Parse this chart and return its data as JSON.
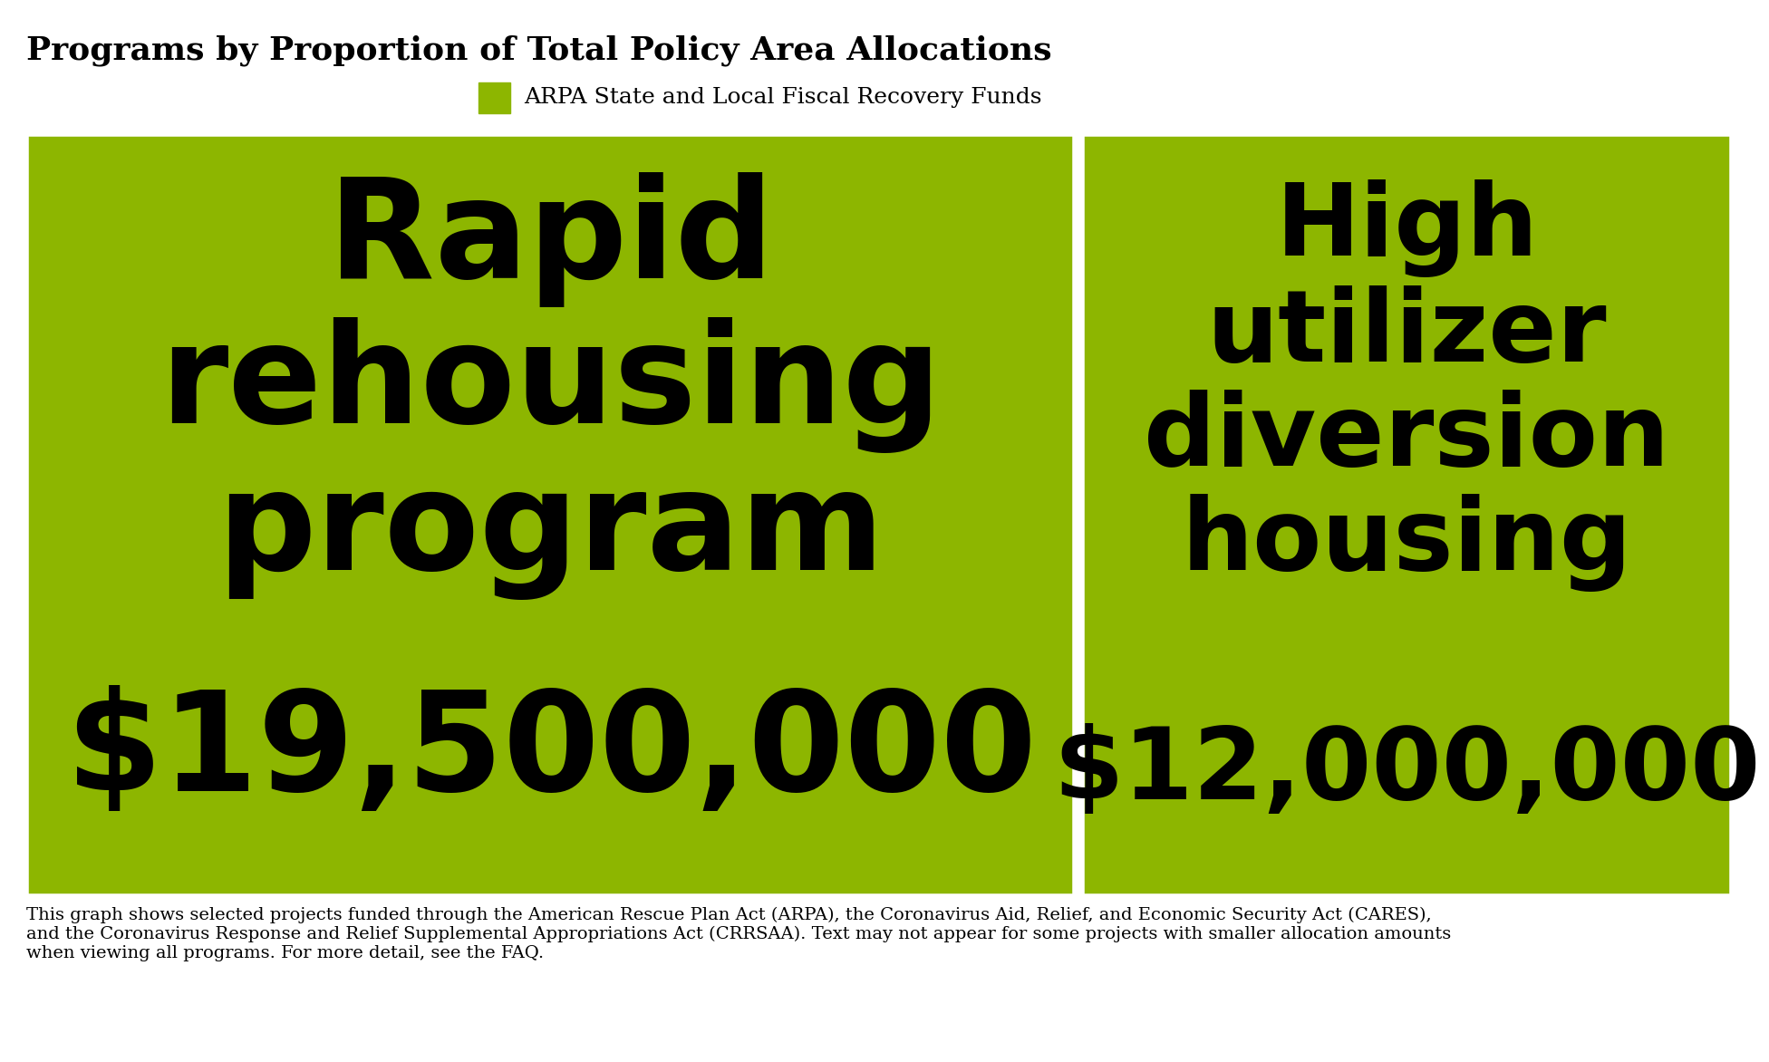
{
  "title": "Programs by Proportion of Total Policy Area Allocations",
  "legend_label": "ARPA State and Local Fiscal Recovery Funds",
  "legend_color": "#8db600",
  "treemap_color": "#8db600",
  "border_color": "#ffffff",
  "programs": [
    {
      "name": "Rapid\nrehousing\nprogram",
      "amount": 19500000,
      "amount_str": "$19,500,000"
    },
    {
      "name": "High\nutilizer\ndiversion\nhousing",
      "amount": 12000000,
      "amount_str": "$12,000,000"
    }
  ],
  "footnote": "This graph shows selected projects funded through the American Rescue Plan Act (ARPA), the Coronavirus Aid, Relief, and Economic Security Act (CARES),\nand the Coronavirus Response and Relief Supplemental Appropriations Act (CRRSAA). Text may not appear for some projects with smaller allocation amounts\nwhen viewing all programs. For more detail, see the FAQ.",
  "title_fontsize": 26,
  "legend_fontsize": 18,
  "footnote_fontsize": 14,
  "name_fontsize_large": 110,
  "name_fontsize_small": 80,
  "amount_fontsize_large": 110,
  "amount_fontsize_small": 80,
  "bg_color": "#ffffff",
  "text_color": "#000000",
  "fig_width": 19.2,
  "fig_height": 11.52
}
